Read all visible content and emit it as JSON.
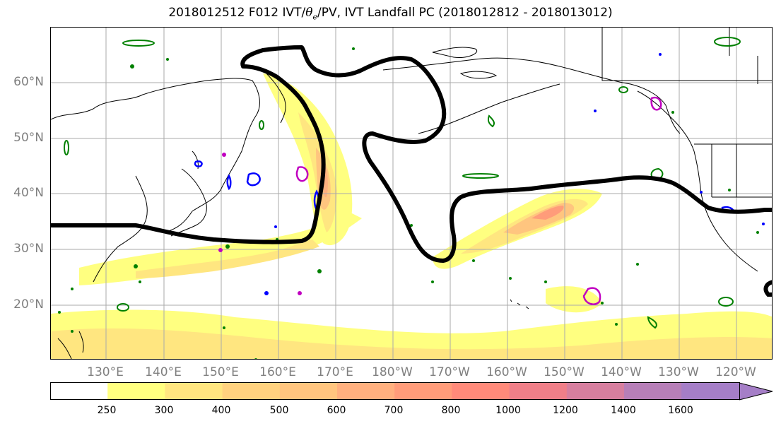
{
  "title_prefix": "2018012512 F012 IVT/",
  "title_theta": "θ",
  "title_sub": "e",
  "title_suffix": "/PV, IVT Landfall PC (2018012812 - 2018013012)",
  "lat_labels": [
    "60°N",
    "50°N",
    "40°N",
    "30°N",
    "20°N"
  ],
  "lon_labels": [
    "130°E",
    "140°E",
    "150°E",
    "160°E",
    "170°E",
    "180°W",
    "170°W",
    "160°W",
    "150°W",
    "140°W",
    "130°W",
    "120°W"
  ],
  "colorbar": {
    "ticks": [
      "250",
      "300",
      "400",
      "500",
      "600",
      "700",
      "800",
      "1000",
      "1200",
      "1400",
      "1600"
    ],
    "colors": [
      "#ffffff",
      "#ffff80",
      "#ffe680",
      "#ffd27f",
      "#ffc57f",
      "#ffb07f",
      "#ff9c7a",
      "#ff8a7a",
      "#f07f88",
      "#d77f9f",
      "#b77fb8",
      "#a57ec7"
    ]
  },
  "contour_colors": {
    "pc_line": "#000000",
    "theta_e": "#008000",
    "pv_blue": "#0000ff",
    "pv_magenta": "#c000c0"
  }
}
